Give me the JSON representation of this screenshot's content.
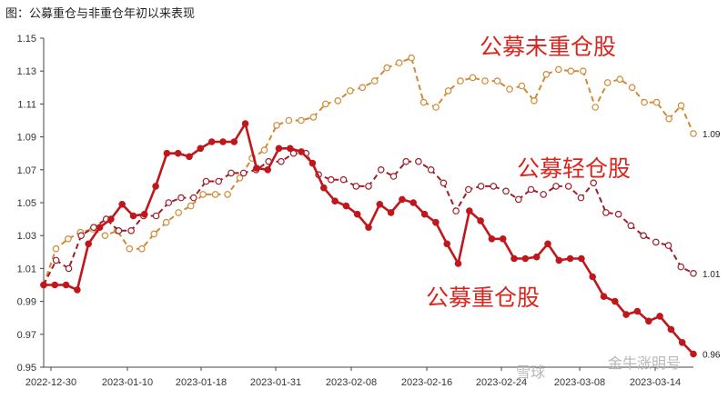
{
  "caption": "图：公募重仓与非重仓年初以来表现",
  "watermark": {
    "left": "雪球",
    "right": "金牛涨明号"
  },
  "colors": {
    "heavy": "#c0171c",
    "light": "#9e1e2a",
    "none": "#d08a35",
    "label": "#d8261f",
    "axis": "#444444"
  },
  "chart_data": {
    "type": "line",
    "title": "公募重仓与非重仓年初以来表现",
    "xlabel": "",
    "ylabel": "",
    "ylim": [
      0.95,
      1.15
    ],
    "y_ticks": [
      "0.95",
      "0.97",
      "0.99",
      "1.01",
      "1.03",
      "1.05",
      "1.07",
      "1.09",
      "1.11",
      "1.13",
      "1.15"
    ],
    "x_ticks": [
      "2022-12-30",
      "2023-01-10",
      "2023-01-18",
      "2023-01-31",
      "2023-02-08",
      "2023-02-16",
      "2023-02-24",
      "2023-03-08",
      "2023-03-14"
    ],
    "series": [
      {
        "name": "公募未重仓股",
        "style": "dashed",
        "end_label": "1.09",
        "values": [
          1.0,
          1.022,
          1.028,
          1.032,
          1.034,
          1.03,
          1.033,
          1.022,
          1.022,
          1.031,
          1.038,
          1.044,
          1.048,
          1.055,
          1.055,
          1.055,
          1.065,
          1.077,
          1.082,
          1.097,
          1.1,
          1.1,
          1.102,
          1.11,
          1.112,
          1.118,
          1.12,
          1.124,
          1.132,
          1.135,
          1.138,
          1.111,
          1.108,
          1.118,
          1.124,
          1.126,
          1.124,
          1.124,
          1.119,
          1.121,
          1.112,
          1.128,
          1.131,
          1.13,
          1.13,
          1.108,
          1.123,
          1.125,
          1.12,
          1.111,
          1.111,
          1.101,
          1.109,
          1.092
        ]
      },
      {
        "name": "公募轻仓股",
        "style": "dashed",
        "end_label": "1.01",
        "values": [
          1.0,
          1.015,
          1.01,
          1.03,
          1.035,
          1.04,
          1.033,
          1.033,
          1.042,
          1.042,
          1.05,
          1.053,
          1.053,
          1.063,
          1.063,
          1.068,
          1.068,
          1.07,
          1.075,
          1.075,
          1.08,
          1.08,
          1.067,
          1.064,
          1.064,
          1.06,
          1.06,
          1.07,
          1.066,
          1.075,
          1.075,
          1.07,
          1.062,
          1.045,
          1.058,
          1.06,
          1.06,
          1.057,
          1.052,
          1.058,
          1.055,
          1.06,
          1.06,
          1.053,
          1.062,
          1.044,
          1.043,
          1.036,
          1.03,
          1.026,
          1.024,
          1.011,
          1.007
        ]
      },
      {
        "name": "公募重仓股",
        "style": "solid",
        "end_label": "0.96",
        "values": [
          1.0,
          1.0,
          1.0,
          0.997,
          1.025,
          1.035,
          1.04,
          1.049,
          1.042,
          1.043,
          1.06,
          1.08,
          1.08,
          1.078,
          1.083,
          1.087,
          1.087,
          1.087,
          1.098,
          1.071,
          1.07,
          1.083,
          1.083,
          1.081,
          1.074,
          1.059,
          1.051,
          1.048,
          1.043,
          1.035,
          1.049,
          1.044,
          1.052,
          1.05,
          1.043,
          1.038,
          1.025,
          1.013,
          1.045,
          1.039,
          1.028,
          1.028,
          1.016,
          1.016,
          1.017,
          1.025,
          1.015,
          1.016,
          1.016,
          1.005,
          0.993,
          0.99,
          0.982,
          0.984,
          0.978,
          0.981,
          0.973,
          0.965,
          0.958
        ]
      }
    ],
    "annotations": [
      "公募未重仓股",
      "公募轻仓股",
      "公募重仓股"
    ]
  }
}
